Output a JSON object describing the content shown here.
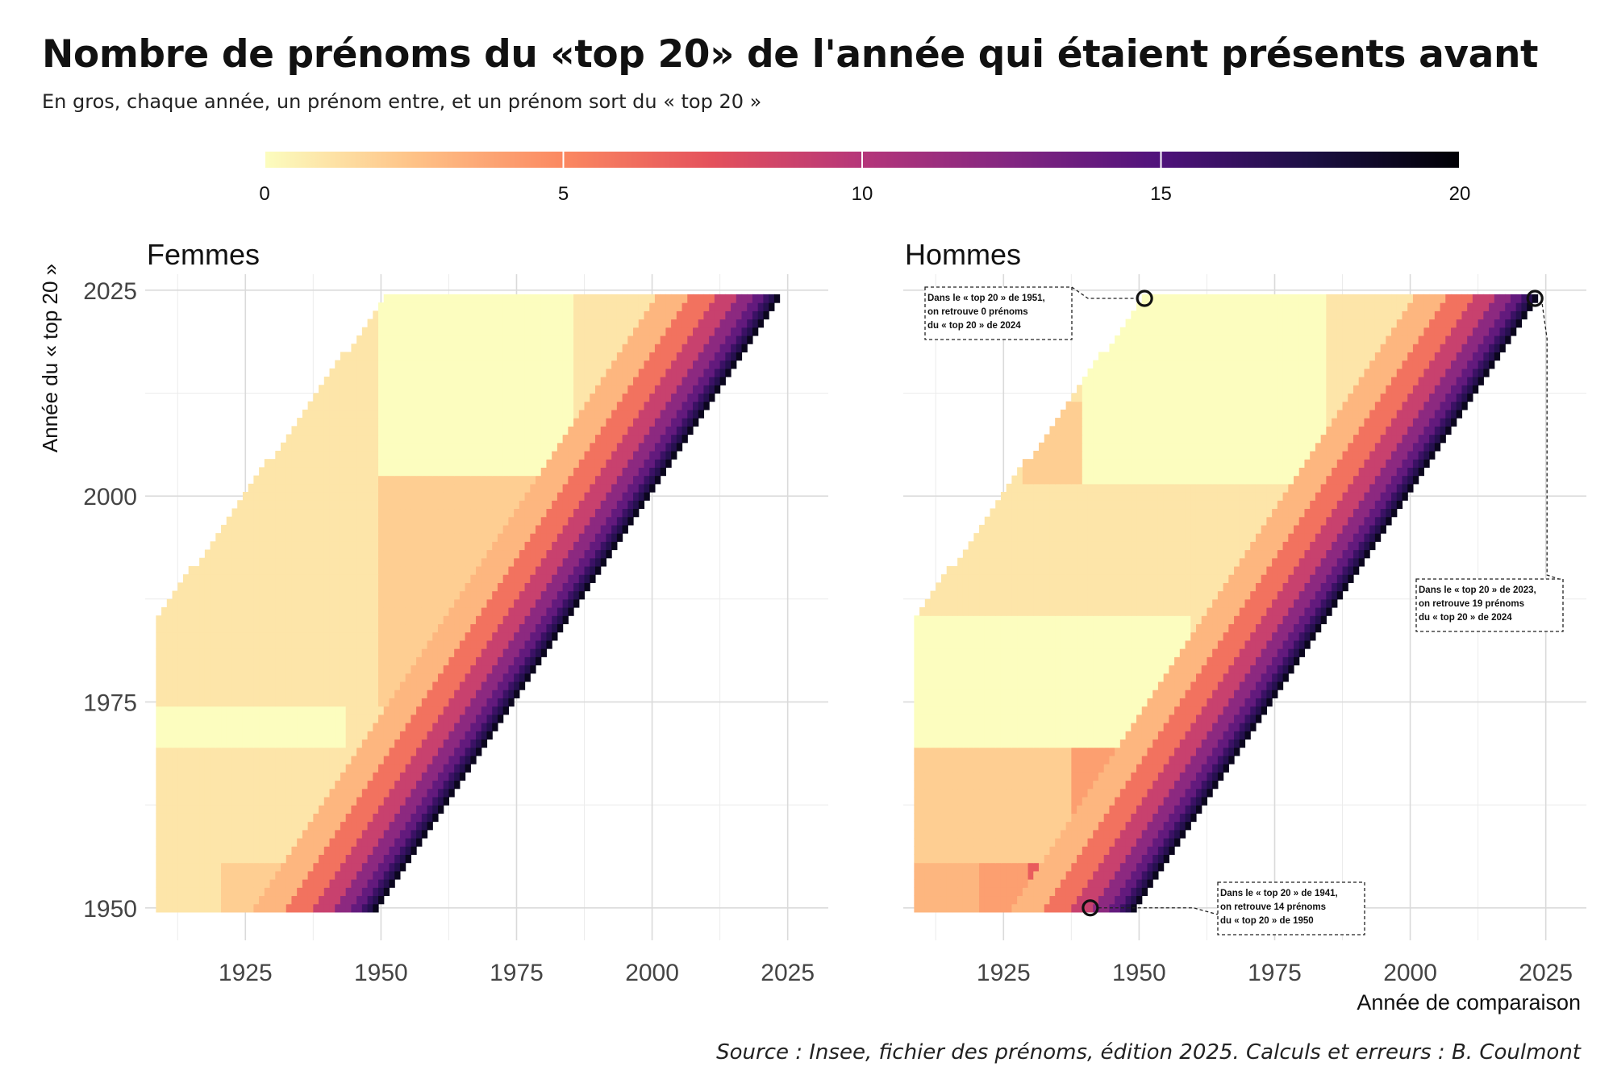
{
  "title": "Nombre de prénoms du «top 20» de l'année qui étaient présents avant",
  "subtitle": "En gros, chaque année, un prénom entre, et un prénom sort du « top 20 »",
  "source": "Source : Insee, fichier des prénoms, édition 2025. Calculs et erreurs : B. Coulmont",
  "chart_data": {
    "type": "heatmap",
    "legend": {
      "position": "top",
      "palette": "magma",
      "range": [
        0,
        20
      ],
      "ticks": [
        0,
        5,
        10,
        15,
        20
      ],
      "tick_labels": [
        "0",
        "5",
        "10",
        "15",
        "20"
      ],
      "colors": [
        "#fcfdbf",
        "#fec287",
        "#fb8861",
        "#e4515c",
        "#b5367a",
        "#822681",
        "#4f127b",
        "#1c1044",
        "#000004"
      ]
    },
    "xlabel": "Année de comparaison",
    "ylabel": "Année du « top 20 »",
    "xlim": [
      1908,
      2031
    ],
    "ylim": [
      1949,
      2024
    ],
    "x_ticks": [
      1925,
      1950,
      1975,
      2000,
      2025
    ],
    "x_tick_labels": [
      "1925",
      "1950",
      "1975",
      "2000",
      "2025"
    ],
    "y_ticks": [
      1950,
      1975,
      2000,
      2025
    ],
    "y_tick_labels": [
      "1950",
      "1975",
      "2000",
      "2025"
    ],
    "grid": true,
    "cell_rule": "For each row year y (1950–2024) and column year x (first year of the dataset up to y−1), the value is the number of names of the year-y « top 20 » that were already present in year x; it rises from near 0 for distant years to 19 for x = y−1.",
    "panels": [
      {
        "name": "Femmes",
        "x_start": {
          "1950": 1909,
          "1985": 1909,
          "2024": 1951
        },
        "regions": [
          {
            "x": [
              1909,
              1921
            ],
            "y": [
              1950,
              1956
            ],
            "value": 1
          },
          {
            "x": [
              1921,
              1934
            ],
            "y": [
              1950,
              1956
            ],
            "value": 2
          },
          {
            "x": [
              1934,
              1942
            ],
            "y": [
              1950,
              1956
            ],
            "value": 5
          },
          {
            "x": [
              1909,
              1940
            ],
            "y": [
              1956,
              1970
            ],
            "value": 1
          },
          {
            "x": [
              1909,
              1944
            ],
            "y": [
              1970,
              1975
            ],
            "value": 0
          },
          {
            "x": [
              1909,
              1950
            ],
            "y": [
              1975,
              2003
            ],
            "value": 1
          },
          {
            "x": [
              1950,
              1980
            ],
            "y": [
              1975,
              2003
            ],
            "value": 2
          },
          {
            "x": [
              1950,
              1986
            ],
            "y": [
              2003,
              2025
            ],
            "value": 0
          },
          {
            "x": [
              1986,
              2000
            ],
            "y": [
              2003,
              2025
            ],
            "value": 1
          }
        ],
        "diagonal_band": [
          {
            "years_before": 1,
            "value": 19
          },
          {
            "years_before": 2,
            "value": 17
          },
          {
            "years_before": 3,
            "value": 16
          },
          {
            "years_before": 5,
            "value": 14
          },
          {
            "years_before": 8,
            "value": 12
          },
          {
            "years_before": 12,
            "value": 9
          },
          {
            "years_before": 17,
            "value": 6
          },
          {
            "years_before": 23,
            "value": 3
          }
        ]
      },
      {
        "name": "Hommes",
        "x_start": {
          "1950": 1909,
          "1985": 1909,
          "2024": 1951
        },
        "regions": [
          {
            "x": [
              1909,
              1921
            ],
            "y": [
              1950,
              1956
            ],
            "value": 3
          },
          {
            "x": [
              1921,
              1930
            ],
            "y": [
              1950,
              1956
            ],
            "value": 4
          },
          {
            "x": [
              1930,
              1941
            ],
            "y": [
              1950,
              1956
            ],
            "value": 7
          },
          {
            "x": [
              1941,
              1950
            ],
            "y": [
              1950,
              1956
            ],
            "value": 14
          },
          {
            "x": [
              1909,
              1938
            ],
            "y": [
              1956,
              1970
            ],
            "value": 2
          },
          {
            "x": [
              1938,
              1956
            ],
            "y": [
              1956,
              1970
            ],
            "value": 4
          },
          {
            "x": [
              1909,
              1960
            ],
            "y": [
              1970,
              1986
            ],
            "value": 0
          },
          {
            "x": [
              1960,
              1975
            ],
            "y": [
              1970,
              1986
            ],
            "value": 1
          },
          {
            "x": [
              1909,
              1938
            ],
            "y": [
              1986,
              2002
            ],
            "value": 1
          },
          {
            "x": [
              1938,
              1969
            ],
            "y": [
              1986,
              2002
            ],
            "value": 1
          },
          {
            "x": [
              1929,
              1940
            ],
            "y": [
              2002,
              2012
            ],
            "value": 2
          },
          {
            "x": [
              1940,
              1985
            ],
            "y": [
              2002,
              2025
            ],
            "value": 0
          },
          {
            "x": [
              1985,
              2005
            ],
            "y": [
              2002,
              2025
            ],
            "value": 1
          }
        ],
        "diagonal_band": [
          {
            "years_before": 1,
            "value": 19
          },
          {
            "years_before": 2,
            "value": 17
          },
          {
            "years_before": 3,
            "value": 16
          },
          {
            "years_before": 5,
            "value": 14
          },
          {
            "years_before": 8,
            "value": 12
          },
          {
            "years_before": 12,
            "value": 9
          },
          {
            "years_before": 17,
            "value": 6
          },
          {
            "years_before": 23,
            "value": 3
          }
        ],
        "annotations": [
          {
            "point": [
              1951,
              2024
            ],
            "value": 0,
            "text": [
              "Dans le « top 20 » de 1951,",
              "on retrouve 0 prénoms",
              "du « top 20 » de 2024"
            ]
          },
          {
            "point": [
              2023,
              2024
            ],
            "value": 19,
            "text": [
              "Dans le « top 20 » de 2023,",
              "on retrouve 19 prénoms",
              "du « top 20 » de 2024"
            ]
          },
          {
            "point": [
              1941,
              1950
            ],
            "value": 14,
            "text": [
              "Dans le « top 20 » de 1941,",
              "on retrouve 14 prénoms",
              "du « top 20 » de 1950"
            ]
          }
        ]
      }
    ]
  }
}
